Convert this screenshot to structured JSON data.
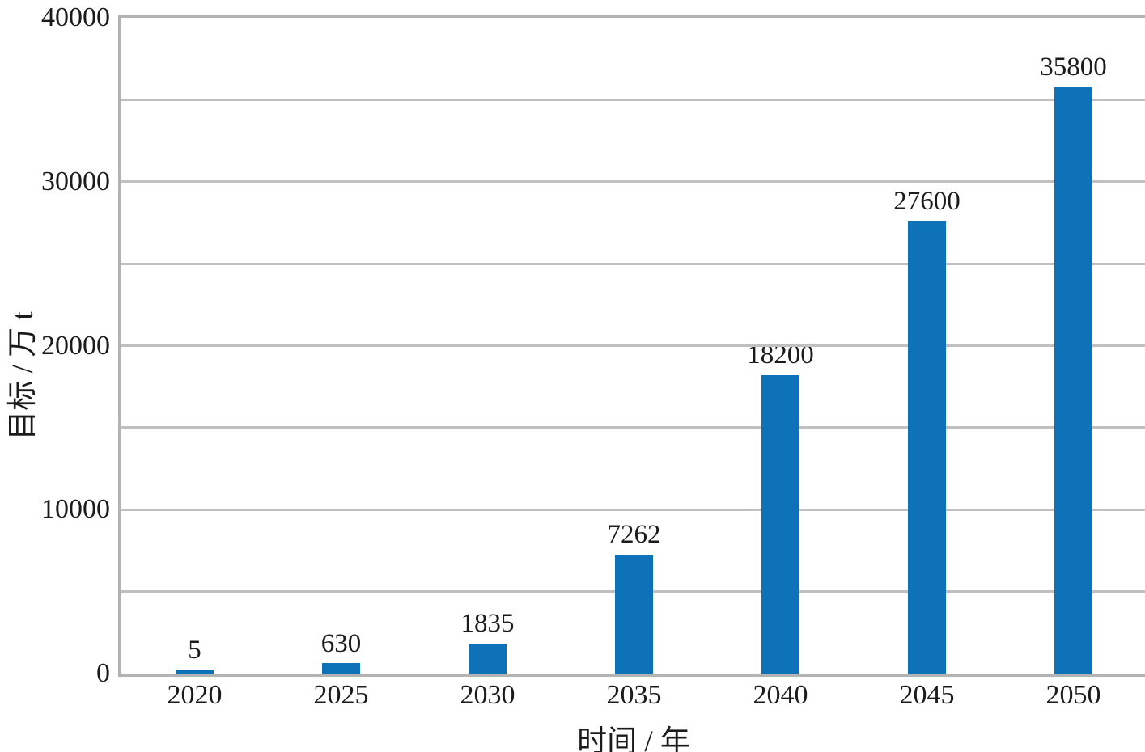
{
  "chart_data": {
    "type": "bar",
    "title": "",
    "xlabel": "时间 / 年",
    "ylabel": "目标 / 万 t",
    "categories": [
      "2020",
      "2025",
      "2030",
      "2035",
      "2040",
      "2045",
      "2050"
    ],
    "values": [
      5,
      630,
      1835,
      7262,
      18200,
      27600,
      35800
    ],
    "value_labels": [
      "5",
      "630",
      "1835",
      "7262",
      "18200",
      "27600",
      "35800"
    ],
    "ylim": [
      0,
      40000
    ],
    "y_major_ticks": [
      0,
      10000,
      20000,
      30000,
      40000
    ],
    "y_major_tick_labels": [
      "0",
      "10000",
      "20000",
      "30000",
      "40000"
    ],
    "y_gridline_interval": 5000,
    "grid_on": true,
    "legend": null,
    "colors": {
      "bar": "#0d72b8",
      "gridline": "#c0c0c0",
      "frame": "#b3b3b3",
      "text": "#1b1b1b",
      "background": "#ffffff"
    }
  }
}
